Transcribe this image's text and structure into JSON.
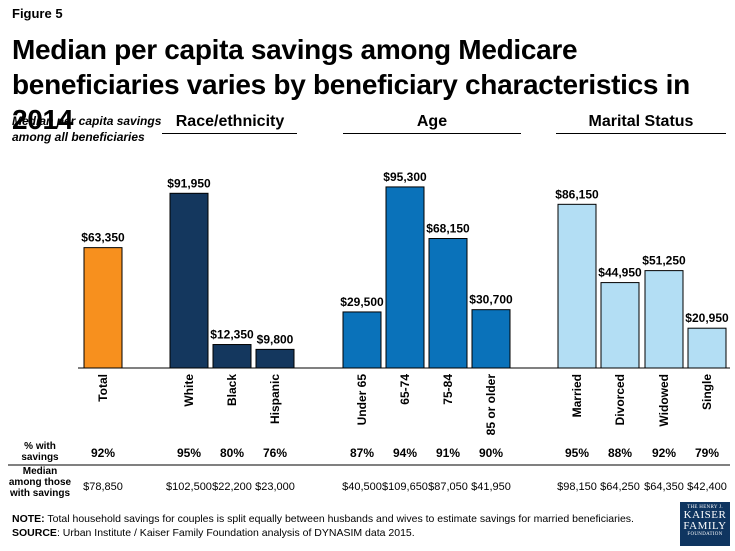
{
  "figure_label": "Figure 5",
  "title": "Median per capita savings among Medicare beneficiaries varies by beneficiary characteristics in 2014",
  "side_label": "Median per capita savings among all beneficiaries",
  "groups": [
    {
      "name": "Race/ethnicity"
    },
    {
      "name": "Age"
    },
    {
      "name": "Marital Status"
    }
  ],
  "row_headers": {
    "pct_with_savings": "% with savings",
    "median_among_savers": "Median among those with savings"
  },
  "footnote": {
    "note_label": "NOTE:",
    "note_text": "Total household savings for couples is split equally between husbands and wives  to estimate savings for married beneficiaries.",
    "source_label": "SOURCE",
    "source_text": ": Urban Institute / Kaiser Family Foundation analysis of DYNASIM data 2015."
  },
  "logo": {
    "line1": "THE HENRY J.",
    "line2": "KAISER",
    "line3": "FAMILY",
    "line4": "FOUNDATION"
  },
  "colors": {
    "total": "#F7901E",
    "race": "#14375E",
    "age": "#0A72BA",
    "marital": "#B3DEF4",
    "bar_stroke": "#000000"
  },
  "chart_data": {
    "type": "bar",
    "title": "Median per capita savings among Medicare beneficiaries varies by beneficiary characteristics in 2014",
    "ylabel": "Median per capita savings among all beneficiaries",
    "ylim": [
      0,
      100000
    ],
    "grid": false,
    "categories": [
      "Total",
      "White",
      "Black",
      "Hispanic",
      "Under 65",
      "65-74",
      "75-84",
      "85 or older",
      "Married",
      "Divorced",
      "Widowed",
      "Single"
    ],
    "category_group": [
      "total",
      "race",
      "race",
      "race",
      "age",
      "age",
      "age",
      "age",
      "marital",
      "marital",
      "marital",
      "marital"
    ],
    "values": [
      63350,
      91950,
      12350,
      9800,
      29500,
      95300,
      68150,
      30700,
      86150,
      44950,
      51250,
      20950
    ],
    "data_labels": [
      "$63,350",
      "$91,950",
      "$12,350",
      "$9,800",
      "$29,500",
      "$95,300",
      "$68,150",
      "$30,700",
      "$86,150",
      "$44,950",
      "$51,250",
      "$20,950"
    ],
    "pct_with_savings": [
      "92%",
      "95%",
      "80%",
      "76%",
      "87%",
      "94%",
      "91%",
      "90%",
      "95%",
      "88%",
      "92%",
      "79%"
    ],
    "median_among_savers": [
      "$78,850",
      "$102,500",
      "$22,200",
      "$23,000",
      "$40,500",
      "$109,650",
      "$87,050",
      "$41,950",
      "$98,150",
      "$64,250",
      "$64,350",
      "$42,400"
    ]
  }
}
